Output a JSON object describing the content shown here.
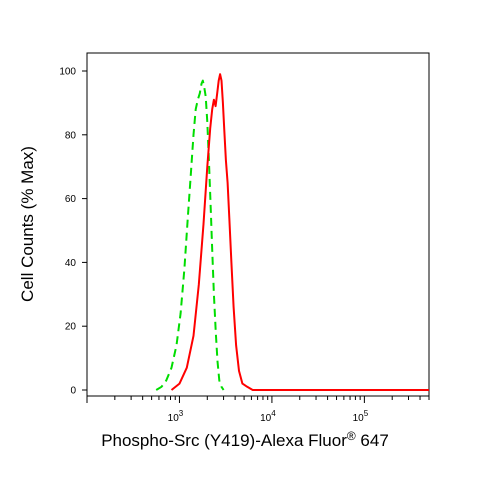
{
  "chart_data": {
    "type": "line",
    "xlabel": "Phospho-Src (Y419)-Alexa Fluor",
    "xlabel_superscript": "®",
    "xlabel_suffix": " 647",
    "ylabel": "Cell Counts (% Max)",
    "x_scale": "log",
    "xlim": [
      100,
      500000
    ],
    "ylim": [
      0,
      100
    ],
    "y_ticks": [
      0,
      20,
      40,
      60,
      80,
      100
    ],
    "y_tick_labels": [
      "0",
      "20",
      "40",
      "60",
      "80",
      "100"
    ],
    "x_ticks": [
      1000,
      10000,
      100000
    ],
    "x_tick_labels": [
      {
        "base": "10",
        "exp": "3"
      },
      {
        "base": "10",
        "exp": "4"
      },
      {
        "base": "10",
        "exp": "5"
      }
    ],
    "grid": false,
    "series": [
      {
        "color": "#00dd00",
        "style": "dashed",
        "points": [
          [
            560,
            0
          ],
          [
            640,
            1
          ],
          [
            720,
            3
          ],
          [
            820,
            7
          ],
          [
            930,
            14
          ],
          [
            1030,
            24
          ],
          [
            1130,
            38
          ],
          [
            1230,
            54
          ],
          [
            1330,
            68
          ],
          [
            1420,
            80
          ],
          [
            1500,
            88
          ],
          [
            1580,
            91
          ],
          [
            1660,
            93
          ],
          [
            1730,
            96
          ],
          [
            1790,
            97
          ],
          [
            1850,
            95
          ],
          [
            1920,
            92
          ],
          [
            2000,
            84
          ],
          [
            2080,
            72
          ],
          [
            2170,
            58
          ],
          [
            2260,
            44
          ],
          [
            2360,
            30
          ],
          [
            2470,
            18
          ],
          [
            2580,
            9
          ],
          [
            2700,
            3
          ],
          [
            2850,
            1
          ],
          [
            3000,
            0
          ]
        ]
      },
      {
        "color": "#ff0000",
        "style": "solid",
        "points": [
          [
            820,
            0
          ],
          [
            1000,
            2
          ],
          [
            1200,
            7
          ],
          [
            1420,
            17
          ],
          [
            1620,
            33
          ],
          [
            1820,
            52
          ],
          [
            2000,
            70
          ],
          [
            2150,
            82
          ],
          [
            2260,
            88
          ],
          [
            2360,
            91
          ],
          [
            2460,
            89
          ],
          [
            2560,
            93
          ],
          [
            2660,
            97
          ],
          [
            2750,
            99
          ],
          [
            2850,
            97
          ],
          [
            2950,
            90
          ],
          [
            3050,
            82
          ],
          [
            3180,
            72
          ],
          [
            3320,
            65
          ],
          [
            3460,
            54
          ],
          [
            3650,
            40
          ],
          [
            3850,
            26
          ],
          [
            4100,
            14
          ],
          [
            4400,
            6
          ],
          [
            4800,
            2
          ],
          [
            5400,
            1
          ],
          [
            6200,
            0
          ],
          [
            20000,
            0
          ],
          [
            100000,
            0
          ],
          [
            500000,
            0
          ]
        ]
      }
    ]
  }
}
